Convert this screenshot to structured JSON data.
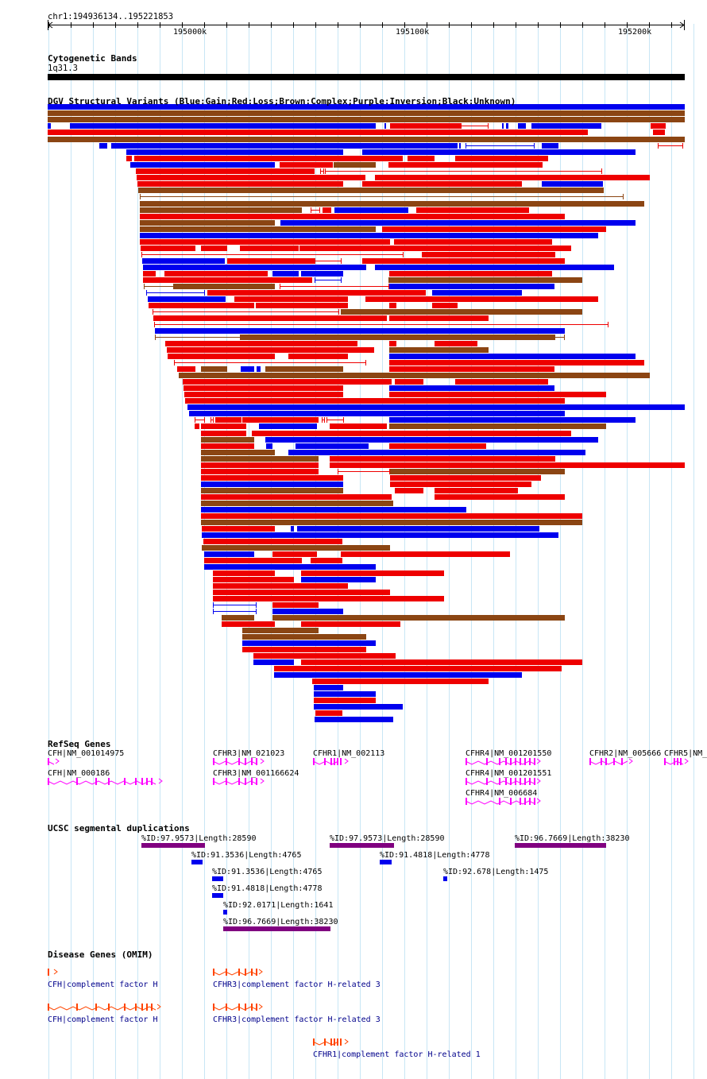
{
  "ruler": {
    "coords": "chr1:194936134..195221853",
    "ticks": [
      {
        "label": "195000k",
        "pos": 195000000
      },
      {
        "label": "195100k",
        "pos": 195100000
      },
      {
        "label": "195200k",
        "pos": 195200000
      }
    ]
  },
  "cytoband": {
    "title": "Cytogenetic Bands",
    "band": "1q31.3"
  },
  "dgv": {
    "title": "DGV Structural Variants (Blue:Gain;Red:Loss;Brown:Complex;Purple:Inversion;Black:Unknown)",
    "colors": {
      "gain": "#0000ee",
      "loss": "#ee0000",
      "complex": "#8b4513"
    }
  },
  "refseq": {
    "title": "RefSeq Genes",
    "genes": [
      {
        "label": "CFH|NM_001014975"
      },
      {
        "label": "CFH|NM_000186"
      },
      {
        "label": "CFHR3|NM_021023"
      },
      {
        "label": "CFHR3|NM_001166624"
      },
      {
        "label": "CFHR1|NM_002113"
      },
      {
        "label": "CFHR4|NM_001201550"
      },
      {
        "label": "CFHR4|NM_001201551"
      },
      {
        "label": "CFHR4|NM_006684"
      },
      {
        "label": "CFHR2|NM_005666"
      },
      {
        "label": "CFHR5|NM_"
      }
    ],
    "color": "#ff00ff"
  },
  "segdup": {
    "title": "UCSC segmental duplications",
    "items": [
      {
        "label": "%ID:97.9573|Length:28590"
      },
      {
        "label": "%ID:97.9573|Length:28590"
      },
      {
        "label": "%ID:96.7669|Length:38230"
      },
      {
        "label": "%ID:91.3536|Length:4765"
      },
      {
        "label": "%ID:91.4818|Length:4778"
      },
      {
        "label": "%ID:91.3536|Length:4765"
      },
      {
        "label": "%ID:92.678|Length:1475"
      },
      {
        "label": "%ID:91.4818|Length:4778"
      },
      {
        "label": "%ID:92.0171|Length:1641"
      },
      {
        "label": "%ID:96.7669|Length:38230"
      }
    ],
    "colors": {
      "high": "#800080",
      "low": "#0000ee"
    }
  },
  "omim": {
    "title": "Disease Genes (OMIM)",
    "genes": [
      {
        "label": "CFH|complement factor H"
      },
      {
        "label": "CFHR3|complement factor H-related 3"
      },
      {
        "label": "CFH|complement factor H"
      },
      {
        "label": "CFHR3|complement factor H-related 3"
      },
      {
        "label": "CFHR1|complement factor H-related 1"
      }
    ],
    "color": "#ff4500"
  }
}
